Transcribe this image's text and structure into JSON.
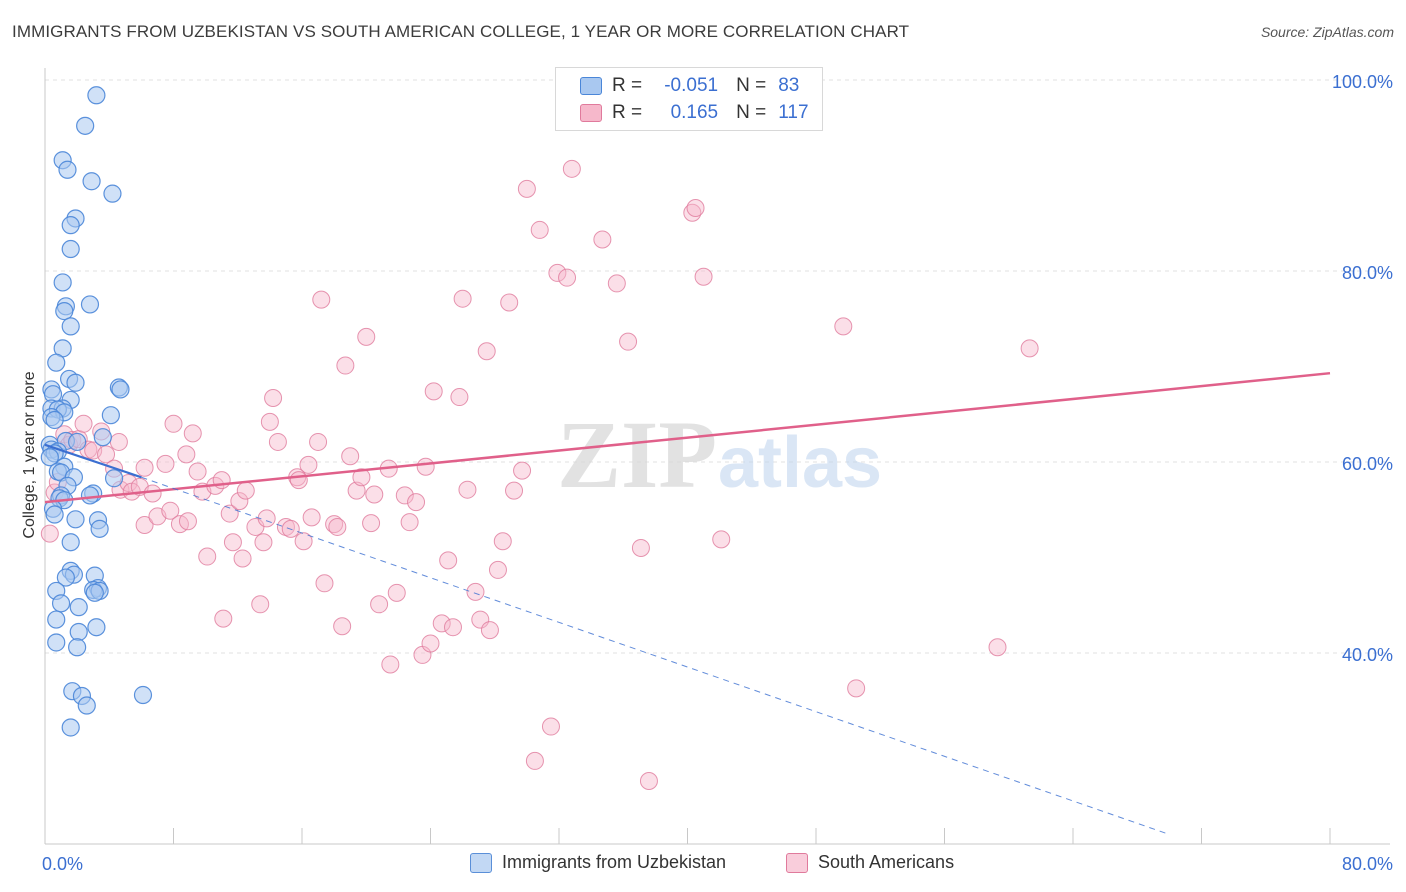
{
  "header": {
    "title": "IMMIGRANTS FROM UZBEKISTAN VS SOUTH AMERICAN COLLEGE, 1 YEAR OR MORE CORRELATION CHART",
    "source": "Source: ZipAtlas.com"
  },
  "watermark": {
    "zip": "ZIP",
    "atlas": "atlas"
  },
  "legend_top": {
    "rows": [
      {
        "r_label": "R =",
        "r_value": "-0.051",
        "n_label": "N =",
        "n_value": "83"
      },
      {
        "r_label": "R =",
        "r_value": "0.165",
        "n_label": "N =",
        "n_value": "117"
      }
    ]
  },
  "colors": {
    "blue_fill": "#a9c8f0",
    "blue_stroke": "#4a86d8",
    "blue_line": "#3b6fd1",
    "pink_fill": "#f6b8cb",
    "pink_stroke": "#e07a9c",
    "pink_line": "#e0608a",
    "grid": "#e2e2e2",
    "axis_text": "#3b6fd1"
  },
  "chart_data": {
    "type": "scatter",
    "title": "IMMIGRANTS FROM UZBEKISTAN VS SOUTH AMERICAN COLLEGE, 1 YEAR OR MORE CORRELATION CHART",
    "xlabel": "",
    "ylabel": "College, 1 year or more",
    "xlim": [
      0,
      80
    ],
    "ylim": [
      20,
      100
    ],
    "x_tick_labels": [
      "0.0%",
      "80.0%"
    ],
    "y_ticks": [
      40,
      60,
      80,
      100
    ],
    "y_tick_labels": [
      "40.0%",
      "60.0%",
      "80.0%",
      "100.0%"
    ],
    "series": [
      {
        "name": "Immigrants from Uzbekistan",
        "color": "blue",
        "r": -0.051,
        "n": 83,
        "trend_solid": [
          [
            0.0,
            61.8
          ],
          [
            6.0,
            58.4
          ]
        ],
        "trend_dashed": [
          [
            6.0,
            58.4
          ],
          [
            70.0,
            21.0
          ]
        ],
        "points": [
          [
            3.2,
            98.4
          ],
          [
            2.5,
            95.2
          ],
          [
            1.1,
            91.6
          ],
          [
            1.4,
            90.6
          ],
          [
            2.9,
            89.4
          ],
          [
            4.2,
            88.1
          ],
          [
            1.9,
            85.5
          ],
          [
            1.6,
            84.8
          ],
          [
            1.6,
            82.3
          ],
          [
            1.1,
            78.8
          ],
          [
            2.8,
            76.5
          ],
          [
            1.3,
            76.3
          ],
          [
            1.2,
            75.8
          ],
          [
            1.6,
            74.2
          ],
          [
            1.1,
            71.9
          ],
          [
            0.7,
            70.4
          ],
          [
            1.5,
            68.7
          ],
          [
            1.9,
            68.3
          ],
          [
            4.6,
            67.8
          ],
          [
            4.7,
            67.6
          ],
          [
            0.4,
            67.6
          ],
          [
            0.5,
            67.1
          ],
          [
            1.6,
            66.5
          ],
          [
            0.4,
            65.6
          ],
          [
            1.1,
            65.6
          ],
          [
            0.8,
            65.5
          ],
          [
            1.2,
            65.2
          ],
          [
            4.1,
            64.9
          ],
          [
            0.4,
            64.7
          ],
          [
            0.6,
            64.4
          ],
          [
            3.6,
            62.6
          ],
          [
            1.3,
            62.2
          ],
          [
            2.0,
            62.1
          ],
          [
            0.3,
            61.8
          ],
          [
            0.4,
            61.3
          ],
          [
            0.8,
            61.1
          ],
          [
            0.6,
            60.9
          ],
          [
            0.3,
            60.5
          ],
          [
            1.2,
            59.5
          ],
          [
            0.8,
            59.0
          ],
          [
            1.0,
            58.9
          ],
          [
            1.8,
            58.4
          ],
          [
            4.3,
            58.3
          ],
          [
            1.4,
            57.5
          ],
          [
            3.0,
            56.7
          ],
          [
            2.8,
            56.5
          ],
          [
            1.0,
            56.5
          ],
          [
            0.9,
            56.2
          ],
          [
            1.2,
            56.0
          ],
          [
            0.5,
            55.1
          ],
          [
            0.6,
            54.5
          ],
          [
            1.9,
            54.0
          ],
          [
            3.3,
            53.9
          ],
          [
            3.4,
            53.0
          ],
          [
            1.6,
            51.6
          ],
          [
            1.6,
            48.6
          ],
          [
            1.8,
            48.2
          ],
          [
            3.1,
            48.1
          ],
          [
            1.3,
            47.9
          ],
          [
            3.3,
            46.8
          ],
          [
            3.0,
            46.6
          ],
          [
            3.4,
            46.5
          ],
          [
            0.7,
            46.5
          ],
          [
            3.1,
            46.3
          ],
          [
            1.0,
            45.2
          ],
          [
            2.1,
            44.8
          ],
          [
            0.7,
            43.5
          ],
          [
            3.2,
            42.7
          ],
          [
            2.1,
            42.2
          ],
          [
            0.7,
            41.1
          ],
          [
            2.0,
            40.6
          ],
          [
            1.7,
            36.0
          ],
          [
            2.3,
            35.5
          ],
          [
            6.1,
            35.6
          ],
          [
            2.6,
            34.5
          ],
          [
            1.6,
            32.2
          ]
        ]
      },
      {
        "name": "South Americans",
        "color": "pink",
        "r": 0.165,
        "n": 117,
        "trend_solid": [
          [
            0.0,
            55.8
          ],
          [
            80.0,
            69.3
          ]
        ],
        "points": [
          [
            0.3,
            52.5
          ],
          [
            0.6,
            56.8
          ],
          [
            0.8,
            57.9
          ],
          [
            1.2,
            62.9
          ],
          [
            1.5,
            61.8
          ],
          [
            1.7,
            62.3
          ],
          [
            2.1,
            62.4
          ],
          [
            2.4,
            64.0
          ],
          [
            2.7,
            61.3
          ],
          [
            3.0,
            61.2
          ],
          [
            3.5,
            63.2
          ],
          [
            3.8,
            60.8
          ],
          [
            4.3,
            59.3
          ],
          [
            4.6,
            62.1
          ],
          [
            4.7,
            57.1
          ],
          [
            5.2,
            57.8
          ],
          [
            5.4,
            56.9
          ],
          [
            5.9,
            57.4
          ],
          [
            6.2,
            59.4
          ],
          [
            6.2,
            53.4
          ],
          [
            6.7,
            56.7
          ],
          [
            7.0,
            54.3
          ],
          [
            7.5,
            59.8
          ],
          [
            7.8,
            54.9
          ],
          [
            8.0,
            64.0
          ],
          [
            8.4,
            53.5
          ],
          [
            8.8,
            60.8
          ],
          [
            8.9,
            53.8
          ],
          [
            9.2,
            63.0
          ],
          [
            9.5,
            59.0
          ],
          [
            9.8,
            56.9
          ],
          [
            10.1,
            50.1
          ],
          [
            10.6,
            57.5
          ],
          [
            11.0,
            58.1
          ],
          [
            11.1,
            43.6
          ],
          [
            11.5,
            54.6
          ],
          [
            11.7,
            51.6
          ],
          [
            12.1,
            55.9
          ],
          [
            12.3,
            49.9
          ],
          [
            12.5,
            57.0
          ],
          [
            13.1,
            53.2
          ],
          [
            13.4,
            45.1
          ],
          [
            13.6,
            51.6
          ],
          [
            13.8,
            54.1
          ],
          [
            14.0,
            64.2
          ],
          [
            14.2,
            66.7
          ],
          [
            14.5,
            62.1
          ],
          [
            15.0,
            53.2
          ],
          [
            15.3,
            53.0
          ],
          [
            15.7,
            58.4
          ],
          [
            15.8,
            58.1
          ],
          [
            16.1,
            51.7
          ],
          [
            16.4,
            59.7
          ],
          [
            16.6,
            54.2
          ],
          [
            17.0,
            62.1
          ],
          [
            17.2,
            77.0
          ],
          [
            17.4,
            47.3
          ],
          [
            18.0,
            53.5
          ],
          [
            18.2,
            53.2
          ],
          [
            18.5,
            42.8
          ],
          [
            18.7,
            70.1
          ],
          [
            19.0,
            60.6
          ],
          [
            19.4,
            57.0
          ],
          [
            19.7,
            58.4
          ],
          [
            20.0,
            73.1
          ],
          [
            20.3,
            53.6
          ],
          [
            20.5,
            56.6
          ],
          [
            20.8,
            45.1
          ],
          [
            21.4,
            59.3
          ],
          [
            21.5,
            38.8
          ],
          [
            21.9,
            46.3
          ],
          [
            22.4,
            56.5
          ],
          [
            22.7,
            53.7
          ],
          [
            23.1,
            55.8
          ],
          [
            23.5,
            39.8
          ],
          [
            23.7,
            59.5
          ],
          [
            24.0,
            41.0
          ],
          [
            24.2,
            67.4
          ],
          [
            24.7,
            43.1
          ],
          [
            25.1,
            49.7
          ],
          [
            25.4,
            42.7
          ],
          [
            25.8,
            66.8
          ],
          [
            26.0,
            77.1
          ],
          [
            26.3,
            57.1
          ],
          [
            26.8,
            46.4
          ],
          [
            27.1,
            43.5
          ],
          [
            27.5,
            71.6
          ],
          [
            27.7,
            42.4
          ],
          [
            28.2,
            48.7
          ],
          [
            28.5,
            51.7
          ],
          [
            28.9,
            76.7
          ],
          [
            29.2,
            57.0
          ],
          [
            29.7,
            59.1
          ],
          [
            30.0,
            88.6
          ],
          [
            30.5,
            28.7
          ],
          [
            30.8,
            84.3
          ],
          [
            31.5,
            32.3
          ],
          [
            31.9,
            79.8
          ],
          [
            32.5,
            79.3
          ],
          [
            32.8,
            90.7
          ],
          [
            34.7,
            83.3
          ],
          [
            35.6,
            78.7
          ],
          [
            36.3,
            72.6
          ],
          [
            37.1,
            51.0
          ],
          [
            37.6,
            26.6
          ],
          [
            40.3,
            86.1
          ],
          [
            40.5,
            86.6
          ],
          [
            41.0,
            79.4
          ],
          [
            42.1,
            51.9
          ],
          [
            49.7,
            74.2
          ],
          [
            50.5,
            36.3
          ],
          [
            59.3,
            40.6
          ],
          [
            61.3,
            71.9
          ]
        ]
      }
    ]
  },
  "legend_bottom": {
    "items": [
      {
        "label": "Immigrants from Uzbekistan"
      },
      {
        "label": "South Americans"
      }
    ]
  }
}
